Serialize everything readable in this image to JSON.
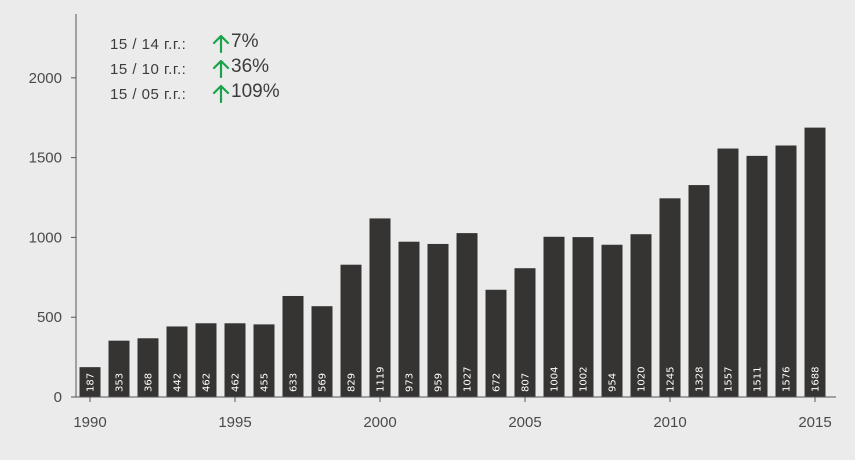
{
  "accent_up": "#1aa34a",
  "bar_color": "#363432",
  "axis_color": "#555555",
  "stats": [
    {
      "label": "15 / 14 г.г.:",
      "arrow_icon": "arrow-up-icon",
      "value": "7%"
    },
    {
      "label": "15 / 10 г.г.:",
      "arrow_icon": "arrow-up-icon",
      "value": "36%"
    },
    {
      "label": "15 / 05 г.г.:",
      "arrow_icon": "arrow-up-icon",
      "value": "109%"
    }
  ],
  "chart_data": {
    "type": "bar",
    "categories": [
      1990,
      1991,
      1992,
      1993,
      1994,
      1995,
      1996,
      1997,
      1998,
      1999,
      2000,
      2001,
      2002,
      2003,
      2004,
      2005,
      2006,
      2007,
      2008,
      2009,
      2010,
      2011,
      2012,
      2013,
      2014,
      2015
    ],
    "values": [
      187,
      353,
      368,
      442,
      462,
      462,
      455,
      633,
      569,
      829,
      1119,
      973,
      959,
      1027,
      672,
      807,
      1004,
      1002,
      954,
      1020,
      1245,
      1328,
      1557,
      1511,
      1576,
      1688
    ],
    "value_labels": [
      "187",
      "353",
      "368",
      "442",
      "462",
      "462",
      "455",
      "633",
      "569",
      "829",
      "1119",
      "973",
      "959",
      "1027",
      "672",
      "807",
      "1004",
      "1002",
      "954",
      "1020",
      "1245",
      "1328",
      "1557",
      "1511",
      "1576",
      "1688"
    ],
    "x_ticks": [
      1990,
      1995,
      2000,
      2005,
      2010,
      2015
    ],
    "x_tick_labels": [
      "1990",
      "1995",
      "2000",
      "2005",
      "2010",
      "2015"
    ],
    "y_ticks": [
      0,
      500,
      1000,
      1500,
      2000
    ],
    "y_tick_labels": [
      "0",
      "500",
      "1000",
      "1500",
      "2000"
    ],
    "ylim": [
      0,
      2400
    ],
    "title": "",
    "xlabel": "",
    "ylabel": "",
    "grid": false,
    "legend": "none"
  }
}
